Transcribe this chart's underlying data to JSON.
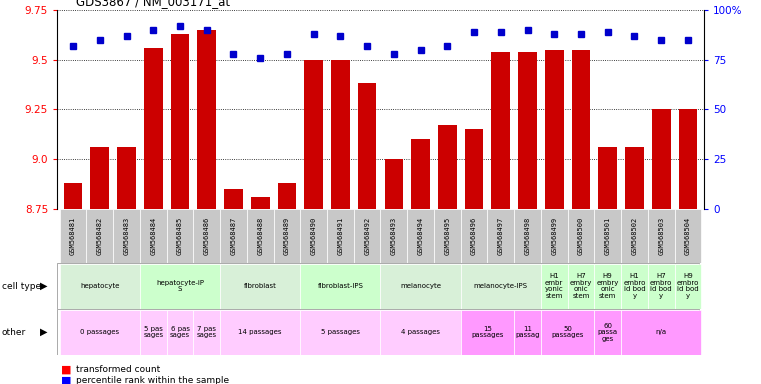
{
  "title": "GDS3867 / NM_003171_at",
  "samples": [
    "GSM568481",
    "GSM568482",
    "GSM568483",
    "GSM568484",
    "GSM568485",
    "GSM568486",
    "GSM568487",
    "GSM568488",
    "GSM568489",
    "GSM568490",
    "GSM568491",
    "GSM568492",
    "GSM568493",
    "GSM568494",
    "GSM568495",
    "GSM568496",
    "GSM568497",
    "GSM568498",
    "GSM568499",
    "GSM568500",
    "GSM568501",
    "GSM568502",
    "GSM568503",
    "GSM568504"
  ],
  "transformed_count": [
    8.88,
    9.06,
    9.06,
    9.56,
    9.63,
    9.65,
    8.85,
    8.81,
    8.88,
    9.5,
    9.5,
    9.38,
    9.0,
    9.1,
    9.17,
    9.15,
    9.54,
    9.54,
    9.55,
    9.55,
    9.06,
    9.06,
    9.25,
    9.25
  ],
  "percentile": [
    82,
    85,
    87,
    90,
    92,
    90,
    78,
    76,
    78,
    88,
    87,
    82,
    78,
    80,
    82,
    89,
    89,
    90,
    88,
    88,
    89,
    87,
    85,
    85
  ],
  "y_min": 8.75,
  "y_max": 9.75,
  "y_ticks": [
    8.75,
    9.0,
    9.25,
    9.5,
    9.75
  ],
  "right_y_ticks": [
    0,
    25,
    50,
    75,
    100
  ],
  "bar_color": "#cc0000",
  "dot_color": "#0000cc",
  "cell_type_groups": [
    {
      "label": "hepatocyte",
      "start": 0,
      "end": 2,
      "color": "#d8f0d8"
    },
    {
      "label": "hepatocyte-iP\nS",
      "start": 3,
      "end": 5,
      "color": "#ccffcc"
    },
    {
      "label": "fibroblast",
      "start": 6,
      "end": 8,
      "color": "#d8f0d8"
    },
    {
      "label": "fibroblast-IPS",
      "start": 9,
      "end": 11,
      "color": "#ccffcc"
    },
    {
      "label": "melanocyte",
      "start": 12,
      "end": 14,
      "color": "#d8f0d8"
    },
    {
      "label": "melanocyte-IPS",
      "start": 15,
      "end": 17,
      "color": "#d8f0d8"
    },
    {
      "label": "H1\nembr\nyonic\nstem",
      "start": 18,
      "end": 18,
      "color": "#ccffcc"
    },
    {
      "label": "H7\nembry\nonic\nstem",
      "start": 19,
      "end": 19,
      "color": "#ccffcc"
    },
    {
      "label": "H9\nembry\nonic\nstem",
      "start": 20,
      "end": 20,
      "color": "#ccffcc"
    },
    {
      "label": "H1\nembro\nid bod\ny",
      "start": 21,
      "end": 21,
      "color": "#ccffcc"
    },
    {
      "label": "H7\nembro\nid bod\ny",
      "start": 22,
      "end": 22,
      "color": "#ccffcc"
    },
    {
      "label": "H9\nembro\nid bod\ny",
      "start": 23,
      "end": 23,
      "color": "#ccffcc"
    }
  ],
  "other_groups": [
    {
      "label": "0 passages",
      "start": 0,
      "end": 2,
      "color": "#ffccff"
    },
    {
      "label": "5 pas\nsages",
      "start": 3,
      "end": 3,
      "color": "#ffccff"
    },
    {
      "label": "6 pas\nsages",
      "start": 4,
      "end": 4,
      "color": "#ffccff"
    },
    {
      "label": "7 pas\nsages",
      "start": 5,
      "end": 5,
      "color": "#ffccff"
    },
    {
      "label": "14 passages",
      "start": 6,
      "end": 8,
      "color": "#ffccff"
    },
    {
      "label": "5 passages",
      "start": 9,
      "end": 11,
      "color": "#ffccff"
    },
    {
      "label": "4 passages",
      "start": 12,
      "end": 14,
      "color": "#ffccff"
    },
    {
      "label": "15\npassages",
      "start": 15,
      "end": 16,
      "color": "#ff99ff"
    },
    {
      "label": "11\npassag",
      "start": 17,
      "end": 17,
      "color": "#ff99ff"
    },
    {
      "label": "50\npassages",
      "start": 18,
      "end": 19,
      "color": "#ff99ff"
    },
    {
      "label": "60\npassa\nges",
      "start": 20,
      "end": 20,
      "color": "#ff99ff"
    },
    {
      "label": "n/a",
      "start": 21,
      "end": 23,
      "color": "#ff99ff"
    }
  ],
  "legend_items": [
    {
      "color": "#cc0000",
      "label": "transformed count"
    },
    {
      "color": "#0000cc",
      "label": "percentile rank within the sample"
    }
  ]
}
